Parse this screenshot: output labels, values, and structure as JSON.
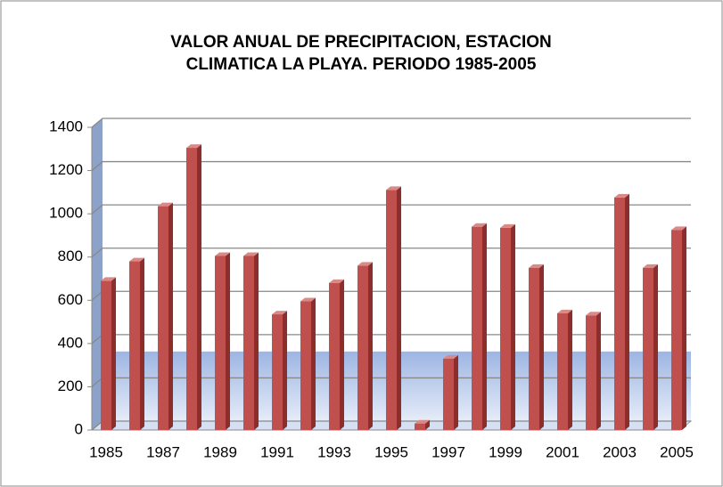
{
  "chart_data": {
    "type": "bar",
    "title": [
      "VALOR ANUAL DE PRECIPITACION, ESTACION",
      "CLIMATICA LA PLAYA. PERIODO 1985-2005"
    ],
    "categories": [
      "1985",
      null,
      "1987",
      null,
      "1989",
      null,
      "1991",
      null,
      "1993",
      null,
      "1995",
      null,
      "1997",
      null,
      "1999",
      null,
      "2001",
      null,
      "2003",
      null,
      "2005"
    ],
    "values": [
      690,
      780,
      1035,
      1305,
      805,
      805,
      535,
      595,
      680,
      760,
      1110,
      30,
      330,
      940,
      935,
      750,
      540,
      530,
      1075,
      750,
      925
    ],
    "color": "#c0504d",
    "ylim": [
      0,
      1400
    ],
    "yticks": [
      0,
      200,
      400,
      600,
      800,
      1000,
      1200,
      1400
    ],
    "grid": true
  }
}
